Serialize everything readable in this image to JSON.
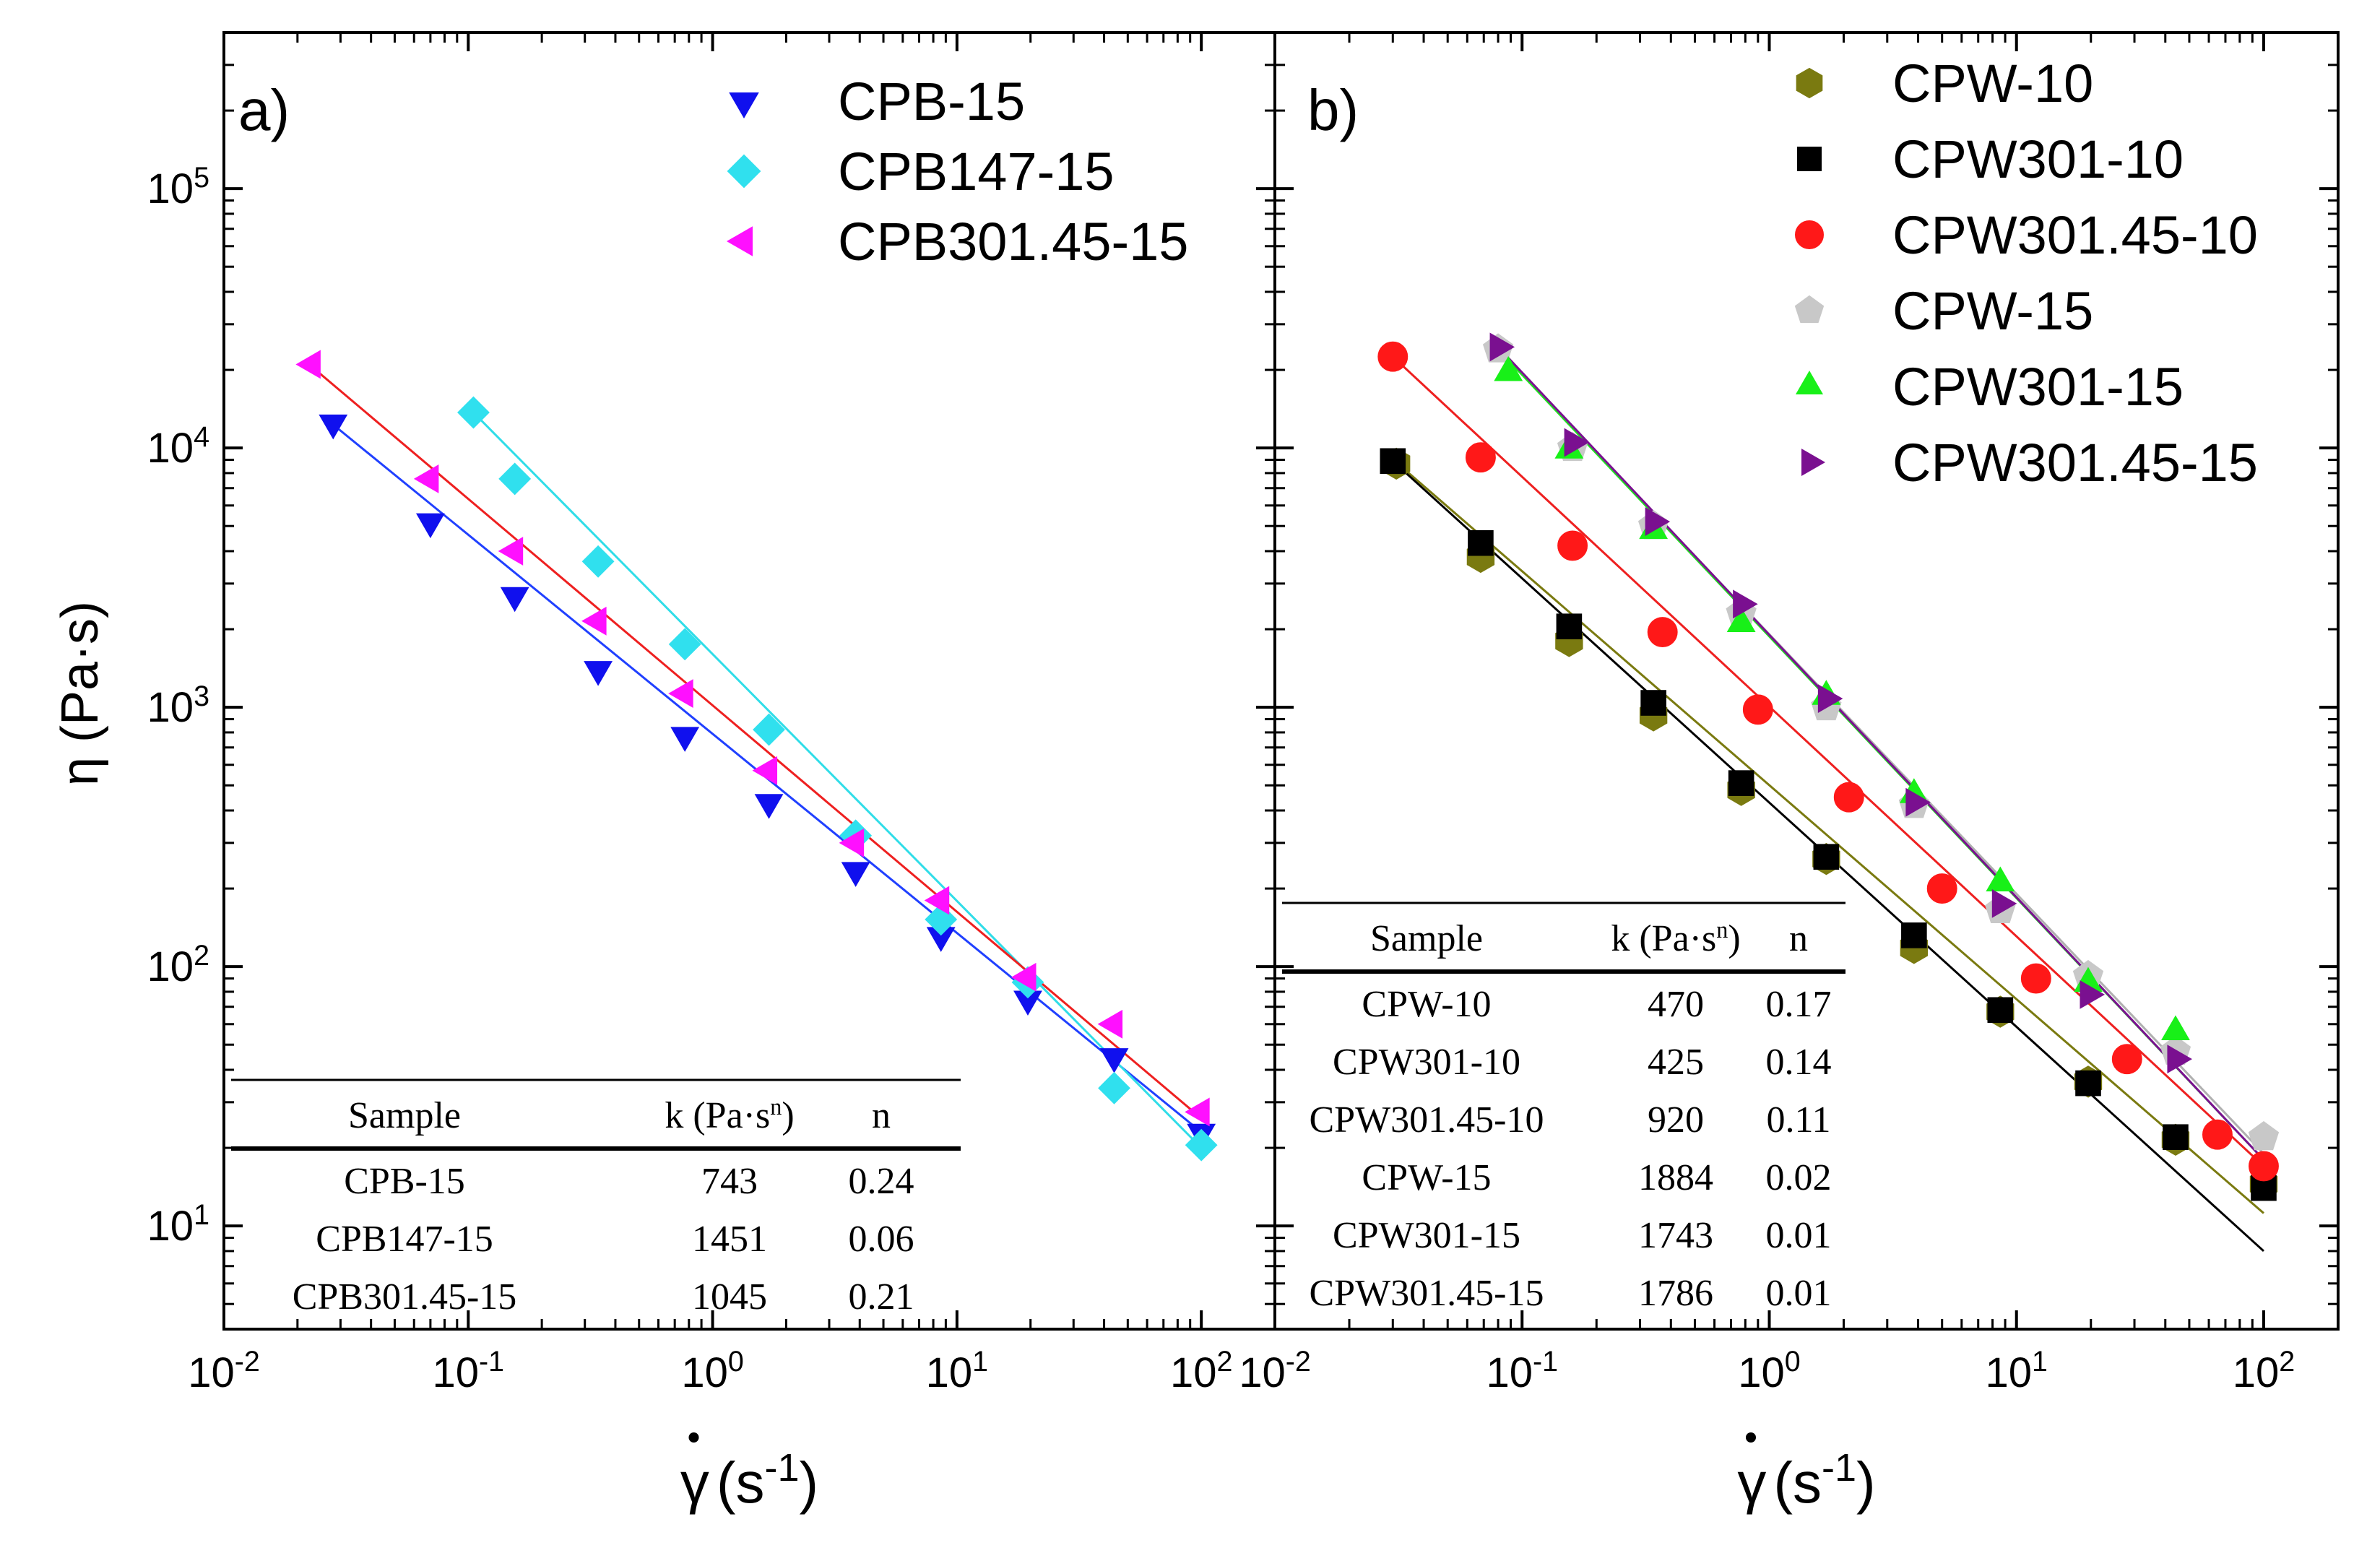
{
  "figure": {
    "ylabel": "η (Pa·s)",
    "ylabel_symbol": "η",
    "ylabel_unit": "(Pa·s)",
    "xlabel_symbol": "γ",
    "xlabel_unit_base": "(s",
    "xlabel_unit_exp": "-1",
    "xlabel_unit_close": ")",
    "x_ticks": [
      {
        "base": "10",
        "exp": "-2"
      },
      {
        "base": "10",
        "exp": "-1"
      },
      {
        "base": "10",
        "exp": "0"
      },
      {
        "base": "10",
        "exp": "1"
      },
      {
        "base": "10",
        "exp": "2"
      }
    ],
    "y_ticks": [
      {
        "base": "10",
        "exp": "1"
      },
      {
        "base": "10",
        "exp": "2"
      },
      {
        "base": "10",
        "exp": "3"
      },
      {
        "base": "10",
        "exp": "4"
      },
      {
        "base": "10",
        "exp": "5"
      }
    ]
  },
  "chart_data": [
    {
      "type": "scatter",
      "panel_label": "a)",
      "x_scale": "log",
      "y_scale": "log",
      "xlim": [
        0.01,
        200
      ],
      "ylim": [
        4,
        400000
      ],
      "series": [
        {
          "name": "CPB-15",
          "marker": "triangle-down",
          "color": "#1010ee",
          "fit_color": "#2040ff",
          "x": [
            0.028,
            0.07,
            0.155,
            0.34,
            0.77,
            1.7,
            3.85,
            8.6,
            19.5,
            44,
            100
          ],
          "y": [
            12500,
            5200,
            2700,
            1400,
            780,
            430,
            235,
            132,
            75,
            45,
            23
          ],
          "fit": [
            [
              0.028,
              12300
            ],
            [
              100,
              23
            ]
          ]
        },
        {
          "name": "CPB147-15",
          "marker": "diamond",
          "color": "#30e0ee",
          "fit_color": "#30dde8",
          "x": [
            0.105,
            0.155,
            0.34,
            0.77,
            1.7,
            3.85,
            8.6,
            19.5,
            44,
            100
          ],
          "y": [
            13700,
            7600,
            3650,
            1750,
            820,
            320,
            152,
            87,
            34,
            20.5
          ],
          "fit": [
            [
              0.105,
              13700
            ],
            [
              100,
              20
            ]
          ]
        },
        {
          "name": "CPB301.45-15",
          "marker": "triangle-left",
          "color": "#ff10ff",
          "fit_color": "#ee2020",
          "x": [
            0.023,
            0.07,
            0.155,
            0.34,
            0.77,
            1.7,
            3.85,
            8.6,
            19.5,
            44,
            100
          ],
          "y": [
            21000,
            7600,
            4000,
            2150,
            1130,
            570,
            300,
            180,
            91,
            60,
            27.5
          ],
          "fit": [
            [
              0.023,
              20500
            ],
            [
              100,
              26
            ]
          ]
        }
      ],
      "table": {
        "columns": [
          "Sample",
          "k  (Pa·s",
          "n"
        ],
        "k_exp": "n",
        "rows": [
          [
            "CPB-15",
            "743",
            "0.24"
          ],
          [
            "CPB147-15",
            "1451",
            "0.06"
          ],
          [
            "CPB301.45-15",
            "1045",
            "0.21"
          ]
        ]
      }
    },
    {
      "type": "scatter",
      "panel_label": "b)",
      "x_scale": "log",
      "y_scale": "log",
      "xlim": [
        0.01,
        200
      ],
      "ylim": [
        4,
        400000
      ],
      "series": [
        {
          "name": "CPW-10",
          "marker": "hexagon",
          "color": "#7a7a10",
          "fit_color": "#7a7a10",
          "x": [
            0.031,
            0.068,
            0.155,
            0.34,
            0.77,
            1.7,
            3.85,
            8.6,
            19.5,
            44,
            100
          ],
          "y": [
            8700,
            3800,
            1800,
            930,
            480,
            260,
            118,
            67,
            36,
            21.5,
            14.5
          ],
          "fit": [
            [
              0.031,
              8800
            ],
            [
              100,
              11.2
            ]
          ]
        },
        {
          "name": "CPW301-10",
          "marker": "square",
          "color": "#000000",
          "fit_color": "#000000",
          "x": [
            0.03,
            0.068,
            0.155,
            0.34,
            0.77,
            1.7,
            3.85,
            8.6,
            19.5,
            44,
            100
          ],
          "y": [
            8900,
            4300,
            2050,
            1040,
            510,
            265,
            132,
            68,
            35.5,
            22,
            14
          ],
          "fit": [
            [
              0.03,
              8900
            ],
            [
              100,
              8
            ]
          ]
        },
        {
          "name": "CPW301.45-10",
          "marker": "circle",
          "color": "#ff1818",
          "fit_color": "#ee2020",
          "x": [
            0.03,
            0.068,
            0.16,
            0.37,
            0.9,
            2.1,
            5,
            12,
            28,
            65,
            100
          ],
          "y": [
            22500,
            9200,
            4200,
            1950,
            980,
            450,
            200,
            90,
            44,
            22.5,
            17
          ],
          "fit": [
            [
              0.03,
              22500
            ],
            [
              100,
              17
            ]
          ]
        },
        {
          "name": "CPW-15",
          "marker": "pentagon",
          "color": "#c8c8c8",
          "fit_color": "#b0b0b0",
          "x": [
            0.08,
            0.16,
            0.34,
            0.77,
            1.7,
            3.85,
            8.6,
            19.5,
            44,
            100
          ],
          "y": [
            24000,
            10000,
            5000,
            2300,
            1000,
            420,
            165,
            92,
            47,
            22
          ],
          "fit": [
            [
              0.08,
              24000
            ],
            [
              100,
              19
            ]
          ]
        },
        {
          "name": "CPW301-15",
          "marker": "triangle-up",
          "color": "#18f018",
          "fit_color": "#20e020",
          "x": [
            0.088,
            0.155,
            0.34,
            0.77,
            1.7,
            3.85,
            8.6,
            19.5,
            44
          ],
          "y": [
            19500,
            9800,
            4800,
            2100,
            1100,
            460,
            210,
            86,
            56
          ],
          "fit": [
            [
              0.08,
              24000
            ],
            [
              100,
              18
            ]
          ]
        },
        {
          "name": "CPW301.45-15",
          "marker": "triangle-right",
          "color": "#7a1090",
          "fit_color": "#7a1090",
          "x": [
            0.08,
            0.16,
            0.34,
            0.77,
            1.7,
            3.85,
            8.6,
            19.5,
            44
          ],
          "y": [
            24500,
            10500,
            5200,
            2500,
            1080,
            430,
            175,
            78,
            44
          ],
          "fit": [
            [
              0.08,
              24500
            ],
            [
              100,
              18
            ]
          ]
        }
      ],
      "table": {
        "columns": [
          "Sample",
          "k (Pa·s",
          "n"
        ],
        "k_exp": "n",
        "rows": [
          [
            "CPW-10",
            "470",
            "0.17"
          ],
          [
            "CPW301-10",
            "425",
            "0.14"
          ],
          [
            "CPW301.45-10",
            "920",
            "0.11"
          ],
          [
            "CPW-15",
            "1884",
            "0.02"
          ],
          [
            "CPW301-15",
            "1743",
            "0.01"
          ],
          [
            "CPW301.45-15",
            "1786",
            "0.01"
          ]
        ]
      }
    }
  ]
}
